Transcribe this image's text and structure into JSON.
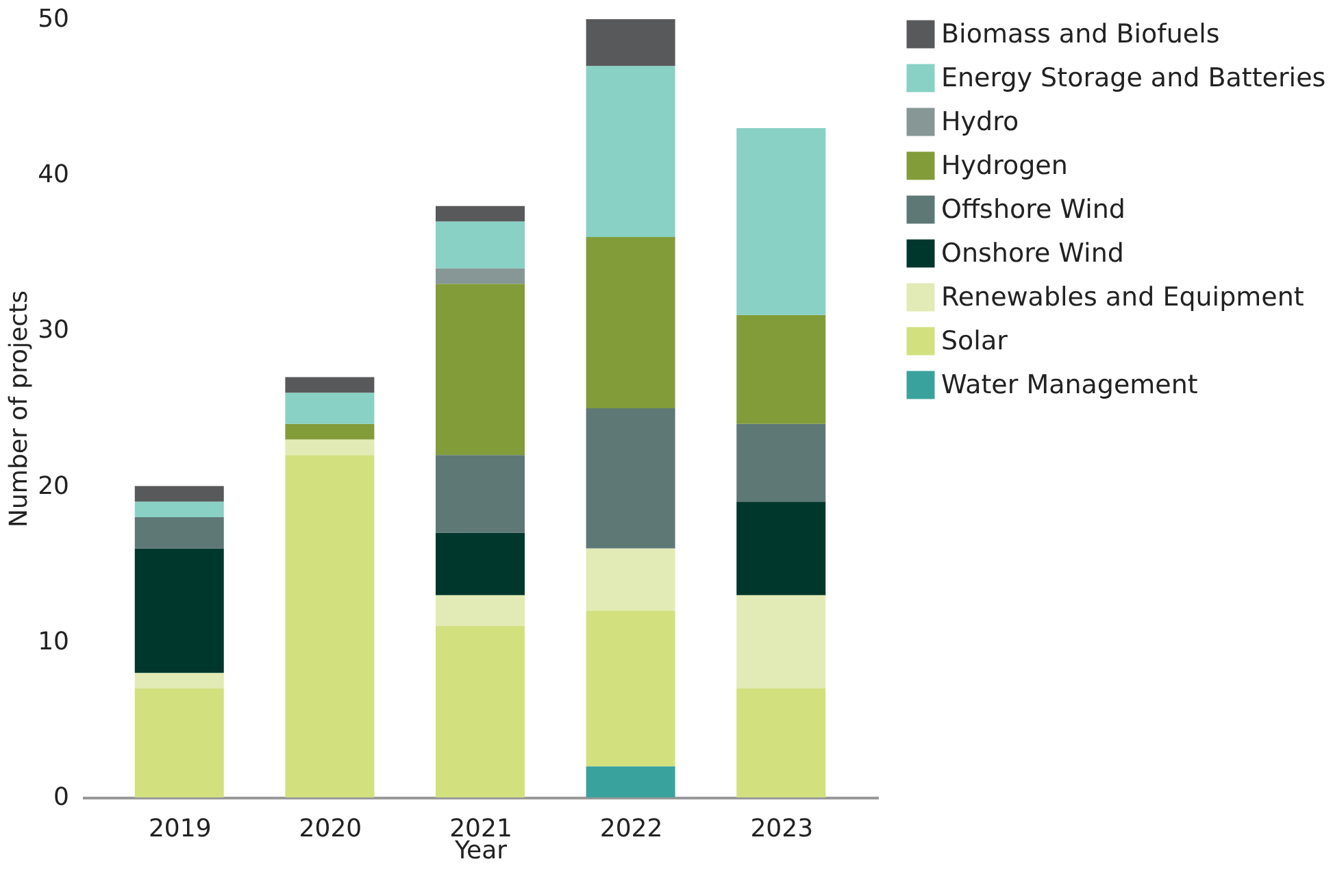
{
  "chart_data": {
    "type": "bar",
    "stacked": true,
    "xlabel": "Year",
    "ylabel": "Number of projects",
    "categories": [
      "2019",
      "2020",
      "2021",
      "2022",
      "2023"
    ],
    "ylim": [
      0,
      50
    ],
    "yticks": [
      0,
      10,
      20,
      30,
      40,
      50
    ],
    "grid": false,
    "legend": "right",
    "series": [
      {
        "name": "Water Management",
        "color": "#3aa29c",
        "values": [
          null,
          null,
          null,
          2,
          null
        ]
      },
      {
        "name": "Solar",
        "color": "#d2e17e",
        "values": [
          7,
          22,
          11,
          10,
          7
        ]
      },
      {
        "name": "Renewables and Equipment",
        "color": "#e2ebb5",
        "values": [
          1,
          1,
          2,
          4,
          6
        ]
      },
      {
        "name": "Onshore Wind",
        "color": "#00372c",
        "values": [
          8,
          null,
          4,
          null,
          6
        ]
      },
      {
        "name": "Offshore Wind",
        "color": "#5e7876",
        "values": [
          2,
          null,
          5,
          9,
          5
        ]
      },
      {
        "name": "Hydrogen",
        "color": "#829c3a",
        "values": [
          null,
          1,
          11,
          11,
          7
        ]
      },
      {
        "name": "Hydro",
        "color": "#869796",
        "values": [
          null,
          null,
          1,
          null,
          null
        ]
      },
      {
        "name": "Energy Storage and Batteries",
        "color": "#88d1c4",
        "values": [
          1,
          2,
          3,
          11,
          12
        ]
      },
      {
        "name": "Biomass and Biofuels",
        "color": "#58595b",
        "values": [
          1,
          1,
          1,
          3,
          null
        ]
      }
    ]
  }
}
